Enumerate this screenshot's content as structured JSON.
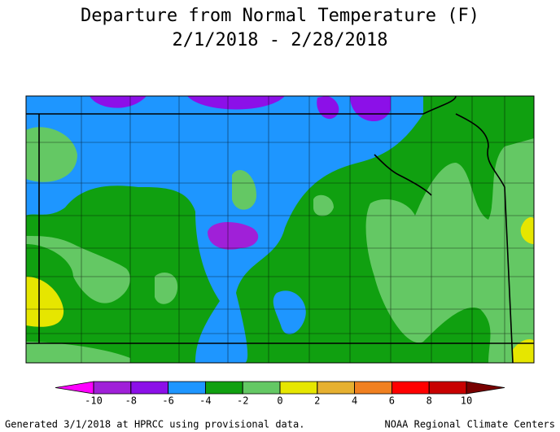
{
  "header": {
    "title": "Departure from Normal Temperature (F)",
    "subtitle": "2/1/2018 - 2/28/2018"
  },
  "legend": {
    "ticks": [
      -10,
      -8,
      -6,
      -4,
      -2,
      0,
      2,
      4,
      6,
      8,
      10
    ],
    "colors": [
      "#ff00ff",
      "#a020d8",
      "#8c10e8",
      "#1e96ff",
      "#10a010",
      "#64c864",
      "#e6e600",
      "#e6b030",
      "#f08020",
      "#ff0000",
      "#c80000",
      "#780000"
    ]
  },
  "footer": {
    "left": "Generated 3/1/2018 at HPRCC using provisional data.",
    "right": "NOAA Regional Climate Centers"
  }
}
